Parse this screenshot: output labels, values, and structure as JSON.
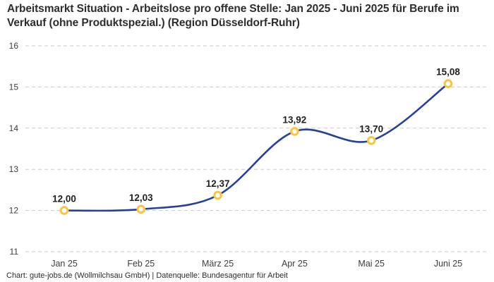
{
  "title": "Arbeitsmarkt Situation - Arbeitslose pro offene Stelle: Jan 2025 - Juni 2025 für Berufe im Verkauf (ohne Produktspezial.) (Region Düsseldorf-Ruhr)",
  "footer": "Chart: gute-jobs.de (Wollmilchsau GmbH) | Datenquelle: Bundesagentur für Arbeit",
  "chart_data": {
    "type": "line",
    "categories": [
      "Jan 25",
      "Feb 25",
      "März 25",
      "Apr 25",
      "Mai 25",
      "Juni 25"
    ],
    "values": [
      12.0,
      12.03,
      12.37,
      13.92,
      13.7,
      15.08
    ],
    "value_labels": [
      "12,00",
      "12,03",
      "12,37",
      "13,92",
      "13,70",
      "15,08"
    ],
    "title": "Arbeitsmarkt Situation - Arbeitslose pro offene Stelle: Jan 2025 - Juni 2025 für Berufe im Verkauf (ohne Produktspezial.) (Region Düsseldorf-Ruhr)",
    "xlabel": "",
    "ylabel": "",
    "ylim": [
      11,
      16
    ],
    "y_ticks": [
      11,
      12,
      13,
      14,
      15,
      16
    ],
    "grid": "horizontal-dashed",
    "legend": "none",
    "smooth": true,
    "colors": {
      "line": "#2340a0",
      "marker_ring": "#fcc43a",
      "marker_fill": "#ffffff",
      "grid": "#c9c9c9",
      "point_label": "#1f1f1f",
      "axis_text": "#3d3d3d"
    }
  }
}
